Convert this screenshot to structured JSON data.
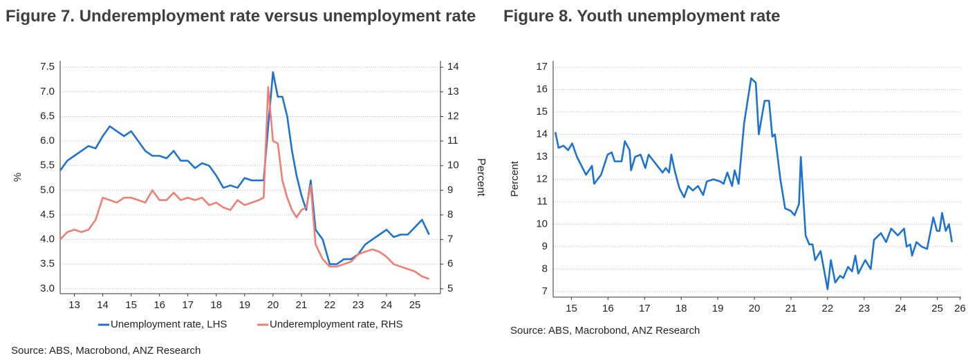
{
  "chart_data": [
    {
      "type": "line",
      "title": "Figure 7. Underemployment rate versus unemployment rate",
      "ylabel": "%",
      "y2label": "Percent",
      "source": "Source: ABS, Macrobond, ANZ Research",
      "x": [
        13,
        13.25,
        13.5,
        13.75,
        14,
        14.25,
        14.5,
        14.75,
        15,
        15.25,
        15.5,
        15.75,
        16,
        16.25,
        16.5,
        16.75,
        17,
        17.25,
        17.5,
        17.75,
        18,
        18.25,
        18.5,
        18.75,
        19,
        19.25,
        19.5,
        19.75,
        20,
        20.17,
        20.33,
        20.5,
        20.67,
        20.83,
        21,
        21.17,
        21.33,
        21.5,
        21.67,
        21.83,
        22,
        22.25,
        22.5,
        22.75,
        23,
        23.25,
        23.5,
        23.75,
        24,
        24.25,
        24.5,
        24.75,
        25,
        25.25,
        25.5,
        25.75,
        26
      ],
      "series": [
        {
          "name": "Unemployment rate, LHS",
          "color": "#1a73d4",
          "axis": "y",
          "values": [
            5.4,
            5.6,
            5.7,
            5.8,
            5.9,
            5.85,
            6.1,
            6.3,
            6.2,
            6.1,
            6.2,
            6.0,
            5.8,
            5.7,
            5.7,
            5.65,
            5.8,
            5.6,
            5.6,
            5.45,
            5.55,
            5.5,
            5.3,
            5.05,
            5.1,
            5.05,
            5.25,
            5.2,
            5.2,
            5.2,
            6.3,
            7.4,
            6.9,
            6.9,
            6.5,
            5.8,
            5.3,
            4.9,
            4.6,
            5.2,
            4.2,
            4.0,
            3.5,
            3.5,
            3.6,
            3.6,
            3.7,
            3.9,
            4.0,
            4.1,
            4.2,
            4.05,
            4.1,
            4.1,
            4.25,
            4.4,
            4.1
          ]
        },
        {
          "name": "Underemployment rate, RHS",
          "color": "#f47c70",
          "axis": "y2",
          "values": [
            7.0,
            7.3,
            7.4,
            7.3,
            7.4,
            7.8,
            8.7,
            8.6,
            8.5,
            8.7,
            8.7,
            8.6,
            8.5,
            9.0,
            8.6,
            8.6,
            8.9,
            8.6,
            8.7,
            8.6,
            8.7,
            8.4,
            8.5,
            8.3,
            8.2,
            8.6,
            8.4,
            8.5,
            8.6,
            8.7,
            13.2,
            11.0,
            10.9,
            9.4,
            8.7,
            8.2,
            7.9,
            8.2,
            8.3,
            9.2,
            6.8,
            6.2,
            5.9,
            5.9,
            6.0,
            6.1,
            6.4,
            6.5,
            6.6,
            6.5,
            6.3,
            6.0,
            5.9,
            5.8,
            5.7,
            5.5,
            5.4
          ]
        }
      ],
      "xlim": [
        13,
        26.4
      ],
      "xticks": [
        {
          "value": 13.5,
          "label": "13"
        },
        {
          "value": 14.5,
          "label": "14"
        },
        {
          "value": 15.5,
          "label": "15"
        },
        {
          "value": 16.5,
          "label": "16"
        },
        {
          "value": 17.5,
          "label": "17"
        },
        {
          "value": 18.5,
          "label": "18"
        },
        {
          "value": 19.5,
          "label": "19"
        },
        {
          "value": 20.5,
          "label": "20"
        },
        {
          "value": 21.5,
          "label": "21"
        },
        {
          "value": 22.5,
          "label": "22"
        },
        {
          "value": 23.5,
          "label": "23"
        },
        {
          "value": 24.5,
          "label": "24"
        },
        {
          "value": 25.5,
          "label": "25"
        }
      ],
      "ylim": [
        2.9,
        7.63
      ],
      "yticks": [
        {
          "value": 3,
          "label": "3.0"
        },
        3.5,
        {
          "value": 4,
          "label": "4.0"
        },
        4.5,
        {
          "value": 5,
          "label": "5.0"
        },
        5.5,
        {
          "value": 6,
          "label": "6.0"
        },
        6.5,
        {
          "value": 7,
          "label": "7.0"
        },
        7.5
      ],
      "y2lim": [
        4.8,
        14.26
      ],
      "y2ticks": [
        5,
        6,
        7,
        8,
        9,
        10,
        11,
        12,
        13,
        14
      ],
      "grid": true,
      "legend": "bottom"
    },
    {
      "type": "line",
      "title": "Figure 8. Youth unemployment rate",
      "ylabel": "Percent",
      "source": "Source: ABS, Macrobond, ANZ Research",
      "x": [
        15.06,
        15.15,
        15.28,
        15.41,
        15.52,
        15.65,
        15.9,
        16.06,
        16.12,
        16.31,
        16.49,
        16.6,
        16.68,
        16.87,
        16.96,
        17.09,
        17.13,
        17.24,
        17.39,
        17.52,
        17.61,
        17.8,
        17.99,
        18.08,
        18.17,
        18.23,
        18.32,
        18.45,
        18.58,
        18.69,
        18.82,
        18.96,
        19.1,
        19.2,
        19.38,
        19.57,
        19.66,
        19.76,
        19.89,
        19.96,
        20.07,
        20.22,
        20.41,
        20.54,
        20.62,
        20.78,
        20.9,
        20.99,
        21.06,
        21.21,
        21.34,
        21.49,
        21.6,
        21.72,
        21.77,
        21.9,
        22.0,
        22.09,
        22.16,
        22.31,
        22.5,
        22.59,
        22.71,
        22.84,
        22.93,
        23.06,
        23.17,
        23.26,
        23.34,
        23.53,
        23.68,
        23.77,
        23.96,
        24.1,
        24.24,
        24.42,
        24.59,
        24.66,
        24.76,
        24.81,
        24.93,
        25.07,
        25.22,
        25.39,
        25.49,
        25.56,
        25.63,
        25.73,
        25.82,
        25.9
      ],
      "series": [
        {
          "name": "Youth unemployment rate",
          "color": "#1a73d4",
          "values": [
            14.1,
            13.4,
            13.5,
            13.3,
            13.6,
            13.0,
            12.2,
            12.6,
            11.8,
            12.2,
            13.1,
            13.2,
            12.8,
            12.8,
            13.7,
            13.3,
            12.4,
            13.0,
            13.1,
            12.5,
            13.1,
            12.7,
            12.3,
            12.5,
            12.3,
            13.1,
            12.4,
            11.6,
            11.2,
            11.7,
            11.5,
            11.7,
            11.3,
            11.9,
            12.0,
            11.9,
            11.8,
            12.3,
            11.7,
            12.4,
            11.8,
            14.5,
            16.5,
            16.3,
            14.0,
            15.5,
            15.5,
            13.9,
            14.0,
            12.0,
            10.7,
            10.6,
            10.4,
            10.9,
            13.0,
            9.5,
            9.1,
            9.1,
            8.4,
            8.8,
            7.1,
            8.4,
            7.4,
            7.7,
            7.6,
            8.1,
            7.9,
            8.6,
            7.8,
            8.4,
            8.0,
            9.3,
            9.6,
            9.2,
            9.8,
            9.5,
            9.8,
            9.0,
            9.1,
            8.6,
            9.2,
            9.0,
            8.9,
            10.3,
            9.7,
            9.7,
            10.5,
            9.7,
            10.0,
            9.2
          ]
        }
      ],
      "xlim": [
        15,
        26.15
      ],
      "xticks": [
        {
          "value": 15.5,
          "label": "15"
        },
        {
          "value": 16.5,
          "label": "16"
        },
        {
          "value": 17.5,
          "label": "17"
        },
        {
          "value": 18.5,
          "label": "18"
        },
        {
          "value": 19.5,
          "label": "19"
        },
        {
          "value": 20.5,
          "label": "20"
        },
        {
          "value": 21.5,
          "label": "21"
        },
        {
          "value": 22.5,
          "label": "22"
        },
        {
          "value": 23.5,
          "label": "23"
        },
        {
          "value": 24.5,
          "label": "24"
        },
        {
          "value": 25.5,
          "label": "25"
        },
        {
          "value": 26.12,
          "label": "26"
        }
      ],
      "ylim": [
        6.75,
        17.28
      ],
      "yticks": [
        7,
        8,
        9,
        10,
        11,
        12,
        13,
        14,
        15,
        16,
        17
      ],
      "grid": true
    }
  ]
}
